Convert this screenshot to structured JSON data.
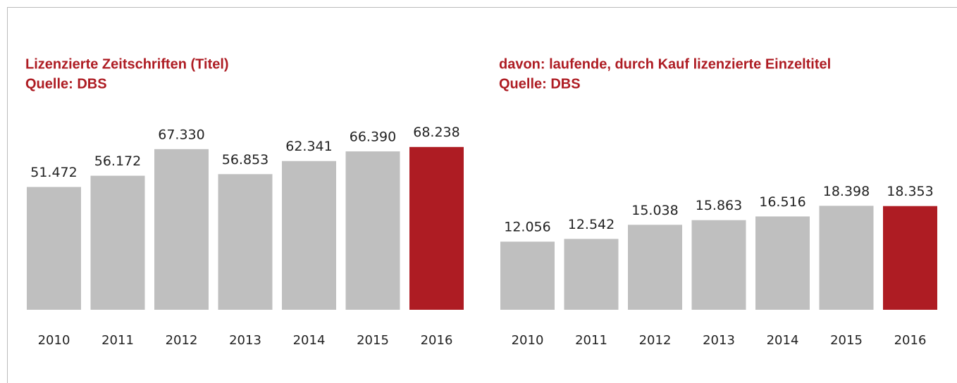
{
  "chart_data": [
    {
      "type": "bar",
      "title": "Lizenzierte Zeitschriften (Titel)",
      "subtitle": "Quelle: DBS",
      "categories": [
        "2010",
        "2011",
        "2012",
        "2013",
        "2014",
        "2015",
        "2016"
      ],
      "values": [
        51472,
        56172,
        67330,
        56853,
        62341,
        66390,
        68238
      ],
      "value_labels": [
        "51.472",
        "56.172",
        "67.330",
        "56.853",
        "62.341",
        "66.390",
        "68.238"
      ],
      "colors": [
        "#bfbfbf",
        "#bfbfbf",
        "#bfbfbf",
        "#bfbfbf",
        "#bfbfbf",
        "#bfbfbf",
        "#ae1c23"
      ],
      "ylim": [
        0,
        90000
      ]
    },
    {
      "type": "bar",
      "title": "davon: laufende, durch Kauf lizenzierte Einzeltitel",
      "subtitle": "Quelle: DBS",
      "categories": [
        "2010",
        "2011",
        "2012",
        "2013",
        "2014",
        "2015",
        "2016"
      ],
      "values": [
        12056,
        12542,
        15038,
        15863,
        16516,
        18398,
        18353
      ],
      "value_labels": [
        "12.056",
        "12.542",
        "15.038",
        "15.863",
        "16.516",
        "18.398",
        "18.353"
      ],
      "colors": [
        "#bfbfbf",
        "#bfbfbf",
        "#bfbfbf",
        "#bfbfbf",
        "#bfbfbf",
        "#bfbfbf",
        "#ae1c23"
      ],
      "ylim": [
        0,
        38000
      ]
    }
  ]
}
